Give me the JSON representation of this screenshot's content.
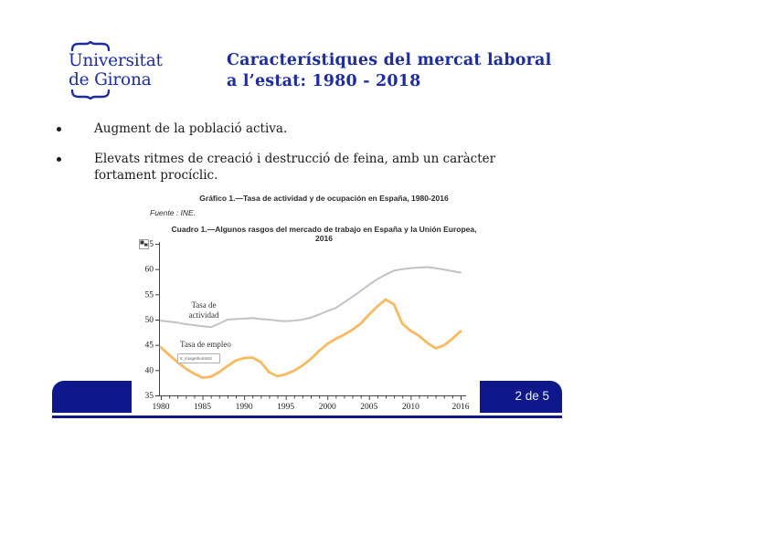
{
  "logo": {
    "line1": "Universitat",
    "line2": "de Girona"
  },
  "header": {
    "title_line1": "Característiques del mercat laboral",
    "title_line2": "a l’estat: 1980 - 2018"
  },
  "bullets": [
    "Augment de la població activa.",
    "Elevats ritmes de creació i destrucció de feina, amb un caràcter fortament procíclic."
  ],
  "figure": {
    "caption_top": "Gráfico 1.—Tasa de actividad y de ocupación en España, 1980-2016",
    "source": "Fuente : INE.",
    "caption_bottom": "Cuadro 1.—Algunos rasgos del mercado de trabajo en España y la Unión Europea, 2016",
    "broken_thumb_text": "tr_imagethumb52"
  },
  "footer": {
    "page_indicator": "2 de 5"
  },
  "colors": {
    "navy": "#0e188a",
    "title_blue": "#1d2da0",
    "axis": "#444444",
    "actividad_line": "#c2c2c2",
    "empleo_line": "#f7ba60"
  },
  "chart_data": {
    "type": "line",
    "title": "Gráfico 1.—Tasa de actividad y de ocupación en España, 1980-2016",
    "xlabel": "",
    "ylabel": "",
    "ylim": [
      35,
      65
    ],
    "yticks": [
      35,
      40,
      45,
      50,
      55,
      60,
      65
    ],
    "xticks": [
      1980,
      1985,
      1990,
      1995,
      2000,
      2005,
      2010,
      2016
    ],
    "grid": false,
    "legend": "inline-labels",
    "x": [
      1980,
      1981,
      1982,
      1983,
      1984,
      1985,
      1986,
      1987,
      1988,
      1989,
      1990,
      1991,
      1992,
      1993,
      1994,
      1995,
      1996,
      1997,
      1998,
      1999,
      2000,
      2001,
      2002,
      2003,
      2004,
      2005,
      2006,
      2007,
      2008,
      2009,
      2010,
      2011,
      2012,
      2013,
      2014,
      2015,
      2016
    ],
    "series": [
      {
        "name": "Tasa de actividad",
        "color": "#c2c2c2",
        "values": [
          49.8,
          49.6,
          49.4,
          49.1,
          48.9,
          48.7,
          48.5,
          49.2,
          50.0,
          50.1,
          50.2,
          50.3,
          50.1,
          50.0,
          49.8,
          49.7,
          49.8,
          50.0,
          50.4,
          51.0,
          51.7,
          52.3,
          53.4,
          54.5,
          55.7,
          56.9,
          58.0,
          58.9,
          59.7,
          60.0,
          60.2,
          60.3,
          60.4,
          60.2,
          59.9,
          59.6,
          59.3
        ]
      },
      {
        "name": "Tasa de empleo",
        "color": "#f7ba60",
        "values": [
          44.5,
          43.0,
          41.6,
          40.3,
          39.3,
          38.5,
          38.7,
          39.6,
          40.8,
          41.9,
          42.4,
          42.5,
          41.6,
          39.6,
          38.8,
          39.2,
          39.9,
          40.9,
          42.2,
          43.8,
          45.2,
          46.2,
          47.0,
          48.0,
          49.2,
          51.0,
          52.6,
          54.0,
          53.0,
          49.2,
          47.8,
          46.8,
          45.4,
          44.3,
          44.9,
          46.2,
          47.7
        ]
      }
    ]
  }
}
